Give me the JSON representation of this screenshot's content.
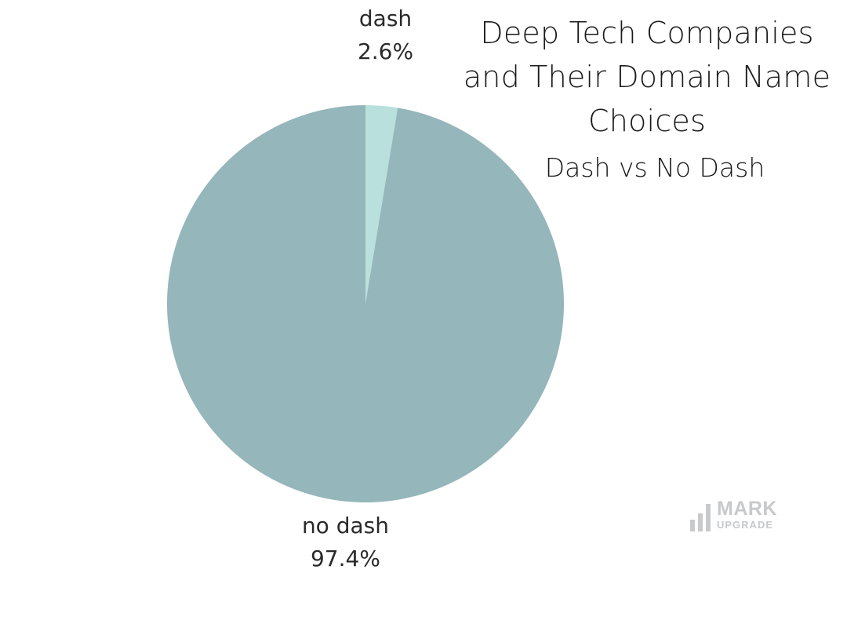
{
  "chart_data": {
    "type": "pie",
    "title_lines": [
      "Deep Tech Companies",
      "and Their Domain Name",
      "Choices"
    ],
    "subtitle": "Dash vs No Dash",
    "slices": [
      {
        "label": "dash",
        "value": 2.6,
        "value_label": "2.6%",
        "color": "#b9e0dd"
      },
      {
        "label": "no dash",
        "value": 97.4,
        "value_label": "97.4%",
        "color": "#95b6ba"
      }
    ],
    "start_angle_deg": 0,
    "direction": "clockwise"
  },
  "watermark": {
    "line1": "MARK",
    "line2": "UPGRADE",
    "color": "#c7c9cb"
  }
}
